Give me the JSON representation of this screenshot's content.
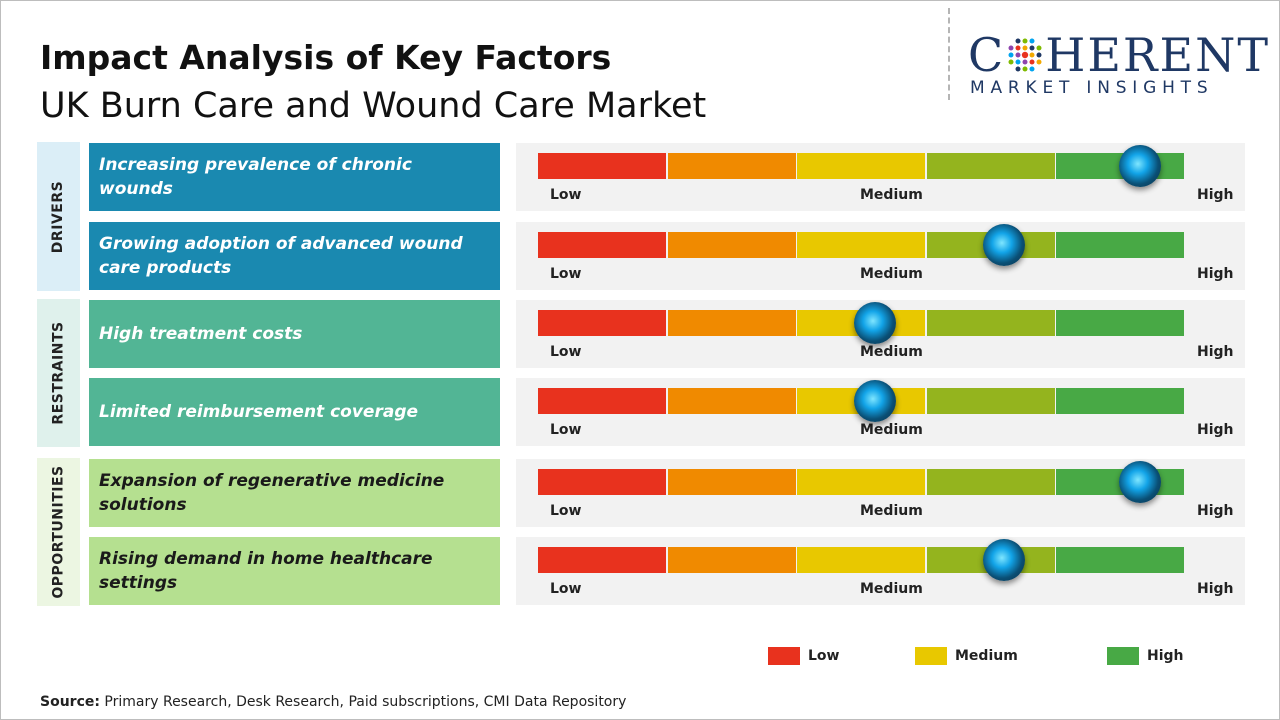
{
  "title": "Impact Analysis of Key Factors",
  "subtitle": "UK Burn Care and Wound Care Market",
  "logo": {
    "main": "C",
    "main_rest": "HERENT",
    "sub": "MARKET INSIGHTS"
  },
  "scale_labels": {
    "low": "Low",
    "medium": "Medium",
    "high": "High"
  },
  "segment_colors": [
    "#e8321e",
    "#f08a00",
    "#e8c800",
    "#94b41e",
    "#48a945"
  ],
  "chart_data": {
    "type": "table",
    "title": "Impact Analysis of Key Factors",
    "subtitle": "UK Burn Care and Wound Care Market",
    "scale": {
      "min": 0,
      "max": 1,
      "labels": [
        "Low",
        "Medium",
        "High"
      ]
    },
    "categories": [
      {
        "name": "DRIVERS",
        "color": "#dbeef7",
        "factor_color": "#1a89b0",
        "factor_text_color": "#ffffff",
        "factors": [
          {
            "label": "Increasing prevalence of chronic wounds",
            "impact": 0.93
          },
          {
            "label": "Growing adoption of advanced wound care products",
            "impact": 0.72
          }
        ]
      },
      {
        "name": "RESTRAINTS",
        "color": "#dff1ec",
        "factor_color": "#52b595",
        "factor_text_color": "#ffffff",
        "factors": [
          {
            "label": "High treatment costs",
            "impact": 0.52
          },
          {
            "label": "Limited reimbursement coverage",
            "impact": 0.52
          }
        ]
      },
      {
        "name": "OPPORTUNITIES",
        "color": "#ecf6e2",
        "factor_color": "#b5e090",
        "factor_text_color": "#1a1a1a",
        "factors": [
          {
            "label": "Expansion of regenerative medicine solutions",
            "impact": 0.93
          },
          {
            "label": "Rising demand in home healthcare settings",
            "impact": 0.72
          }
        ]
      }
    ],
    "legend": [
      {
        "label": "Low",
        "color": "#e8321e"
      },
      {
        "label": "Medium",
        "color": "#e8c800"
      },
      {
        "label": "High",
        "color": "#48a945"
      }
    ]
  },
  "source": {
    "label": "Source:",
    "text": "Primary Research, Desk Research, Paid subscriptions, CMI Data Repository"
  }
}
